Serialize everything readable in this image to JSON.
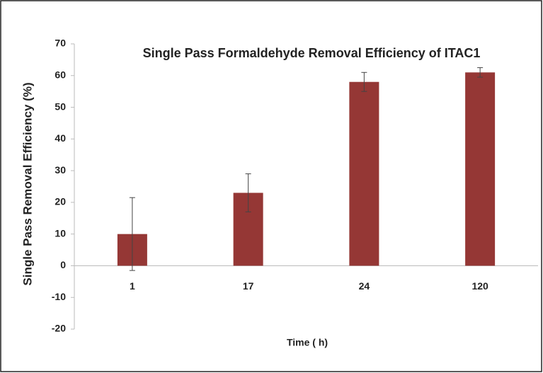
{
  "chart_data": {
    "type": "bar",
    "title": "Single Pass Formaldehyde Removal Efficiency of ITAC1",
    "x_label": "Time ( h)",
    "y_label": "Single Pass Removal Efficiency (%)",
    "categories": [
      "1",
      "17",
      "24",
      "120"
    ],
    "values": [
      10,
      23,
      58,
      61
    ],
    "errors": [
      11.5,
      6,
      3,
      1.5
    ],
    "color": "#953735",
    "ylim": [
      -20,
      70
    ],
    "yticks": [
      -20,
      -10,
      0,
      10,
      20,
      30,
      40,
      50,
      60,
      70
    ],
    "grid": false
  }
}
